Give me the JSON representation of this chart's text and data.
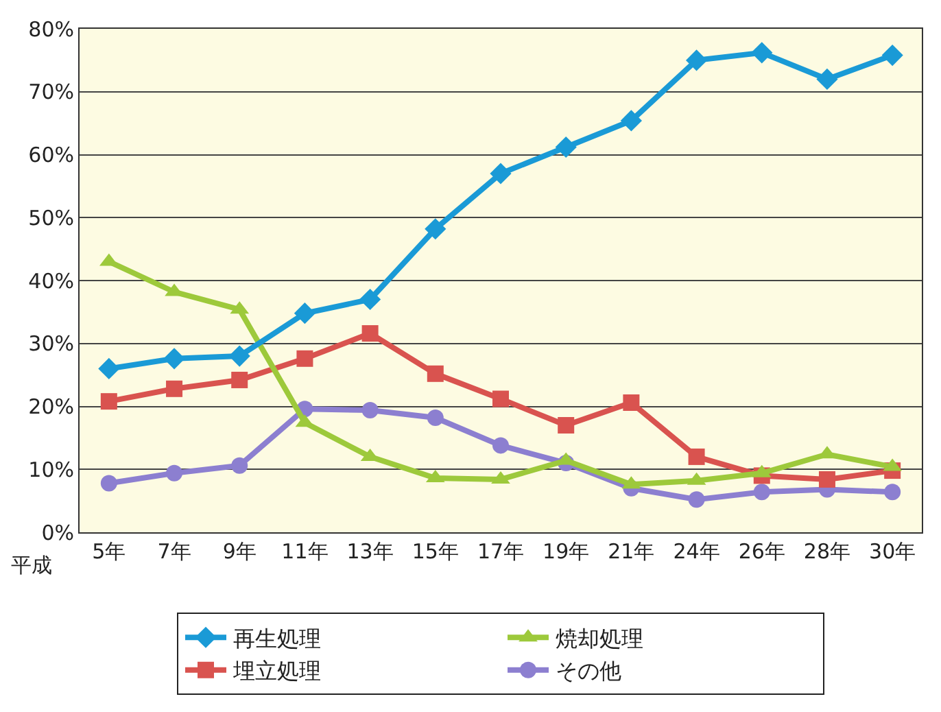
{
  "chart_data": {
    "type": "line",
    "xlabel": "平成",
    "categories": [
      "5年",
      "7年",
      "9年",
      "11年",
      "13年",
      "15年",
      "17年",
      "19年",
      "21年",
      "24年",
      "26年",
      "28年",
      "30年"
    ],
    "series": [
      {
        "name": "再生処理",
        "color": "#1a9ad6",
        "marker": "diamond",
        "values": [
          26,
          27.6,
          28,
          34.8,
          37,
          48.2,
          57,
          61.2,
          65.4,
          75,
          76.2,
          72,
          75.8
        ]
      },
      {
        "name": "焼却処理",
        "color": "#9dc93b",
        "marker": "triangle",
        "values": [
          43,
          38.2,
          35.4,
          17.4,
          12,
          8.6,
          8.4,
          11.4,
          7.6,
          8.2,
          9.4,
          12.4,
          10.4
        ]
      },
      {
        "name": "埋立処理",
        "color": "#d9534f",
        "marker": "square",
        "values": [
          20.8,
          22.8,
          24.2,
          27.6,
          31.6,
          25.2,
          21.2,
          17,
          20.6,
          12,
          9,
          8.4,
          9.8
        ]
      },
      {
        "name": "その他",
        "color": "#8c7fd0",
        "marker": "circle",
        "values": [
          7.8,
          9.4,
          10.6,
          19.6,
          19.4,
          18.2,
          13.8,
          11,
          7,
          5.2,
          6.4,
          6.8,
          6.4
        ]
      }
    ],
    "ylim": [
      0,
      80
    ],
    "yticks": [
      {
        "value": 0,
        "label": "0%"
      },
      {
        "value": 10,
        "label": "10%"
      },
      {
        "value": 20,
        "label": "20%"
      },
      {
        "value": 30,
        "label": "30%"
      },
      {
        "value": 40,
        "label": "40%"
      },
      {
        "value": 50,
        "label": "50%"
      },
      {
        "value": 60,
        "label": "60%"
      },
      {
        "value": 70,
        "label": "70%"
      },
      {
        "value": 80,
        "label": "80%"
      }
    ],
    "grid": "y",
    "legend": "bottom",
    "line_style": "solid"
  }
}
